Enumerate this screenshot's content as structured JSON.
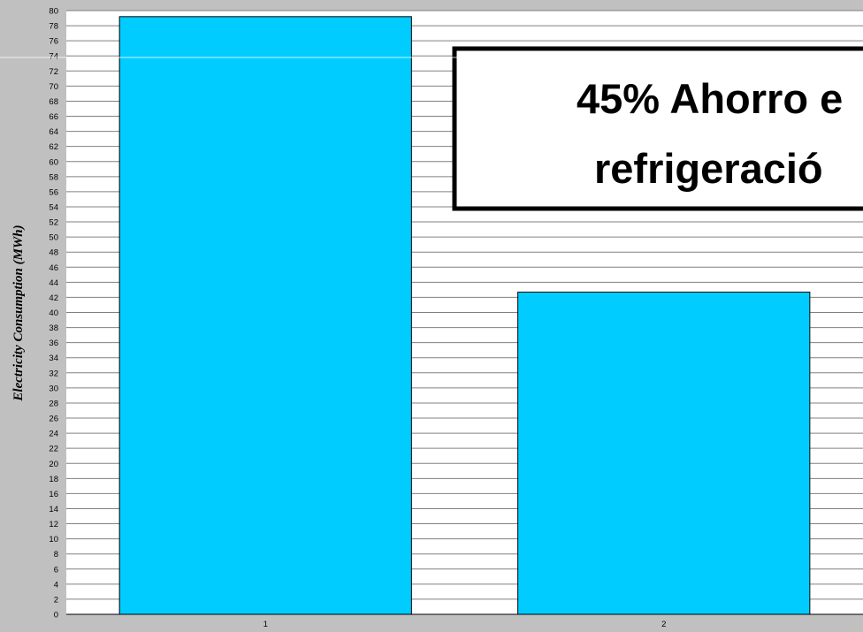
{
  "chart_data": {
    "type": "bar",
    "categories": [
      "1",
      "2"
    ],
    "values": [
      79.2,
      42.7
    ],
    "title": "",
    "xlabel": "",
    "ylabel": "Electricity Consumption (MWh)",
    "ylim": [
      0,
      80
    ],
    "ytick_step": 2,
    "grid": true,
    "annotations": [
      "45% Ahorro e",
      "refrigeració"
    ]
  },
  "colors": {
    "background": "#c0c0c0",
    "plot_area": "#ffffff",
    "gridline": "#808080",
    "bar_fill": "#00ccff",
    "bar_stroke": "#000000",
    "callout_border": "#000000"
  }
}
